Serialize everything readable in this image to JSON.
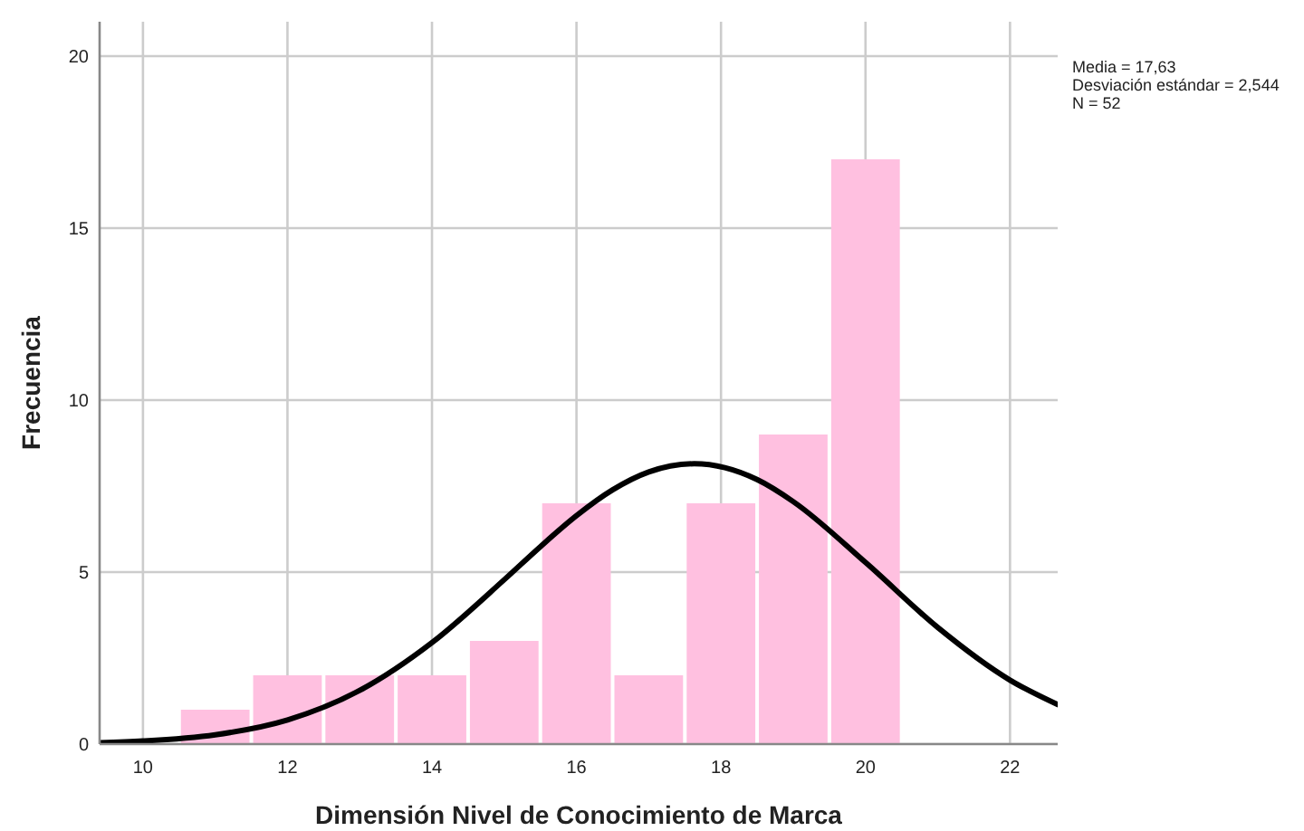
{
  "chart_data": {
    "type": "histogram",
    "xlabel": "Dimensión Nivel de Conocimiento de Marca",
    "ylabel": "Frecuencia",
    "bins": [
      10.5,
      11.5,
      12.5,
      13.5,
      14.5,
      15.5,
      16.5,
      17.5,
      18.5,
      19.5,
      20.5
    ],
    "values": [
      1,
      2,
      2,
      2,
      3,
      7,
      2,
      7,
      9,
      17
    ],
    "color": "#ffc0e0",
    "series": [
      {
        "type": "line",
        "color": "#000000",
        "x": [
          9.4,
          10,
          11,
          12,
          13,
          14,
          15,
          15.5,
          16,
          16.5,
          17,
          17.63,
          18.5,
          19,
          20,
          21,
          22,
          22.66
        ],
        "values": [
          0.04,
          0.09,
          0.27,
          0.7,
          1.56,
          2.95,
          4.78,
          5.74,
          6.64,
          7.39,
          7.91,
          8.15,
          7.69,
          7.05,
          5.28,
          3.39,
          1.86,
          1.15
        ]
      }
    ],
    "xlim": [
      9.4,
      22.66
    ],
    "ylim": [
      0,
      21
    ],
    "xticks": [
      10,
      12,
      14,
      16,
      18,
      20,
      22
    ],
    "yticks": [
      0,
      5,
      10,
      15,
      20
    ],
    "grid": true,
    "annotations": [
      "Media = 17,63",
      "Desviación estándar = 2,544",
      "N = 52"
    ]
  }
}
